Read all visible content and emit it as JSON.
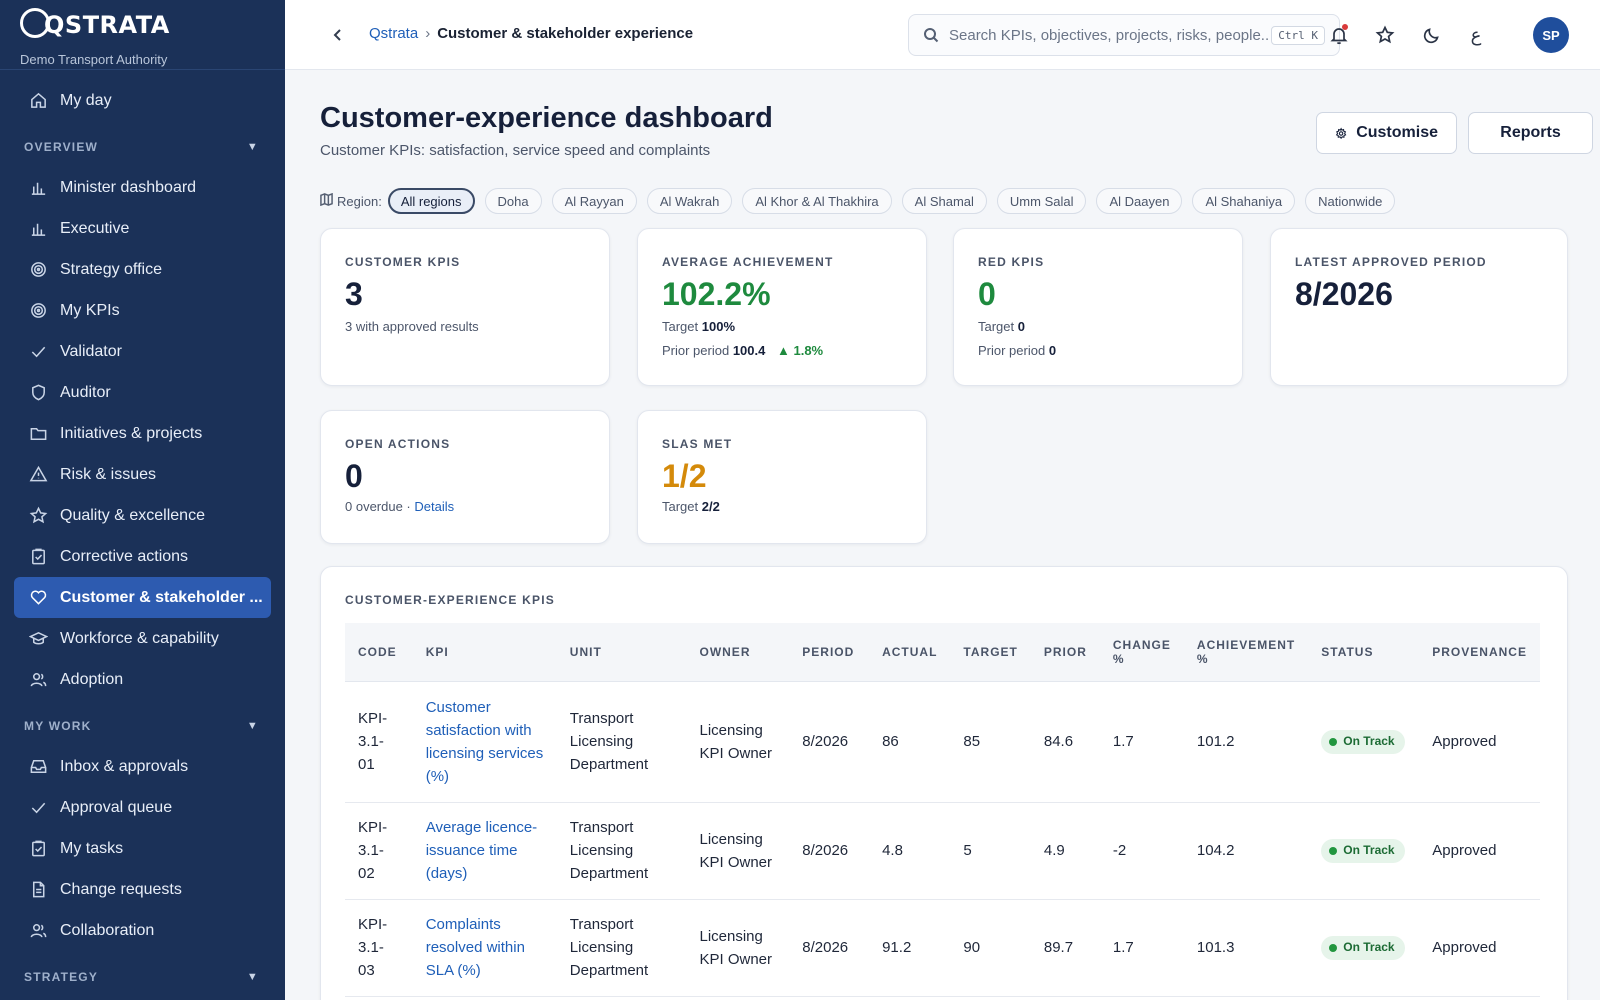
{
  "sidebar": {
    "logo_text": "QSTRATA",
    "org": "Demo Transport Authority",
    "items_top": [
      {
        "label": "My day",
        "icon": "home-icon"
      }
    ],
    "sections": [
      {
        "title": "OVERVIEW",
        "items": [
          {
            "label": "Minister dashboard",
            "icon": "bar-chart-icon"
          },
          {
            "label": "Executive",
            "icon": "bar-chart-icon"
          },
          {
            "label": "Strategy office",
            "icon": "target-icon"
          },
          {
            "label": "My KPIs",
            "icon": "target-icon"
          },
          {
            "label": "Validator",
            "icon": "check-icon"
          },
          {
            "label": "Auditor",
            "icon": "shield-icon"
          },
          {
            "label": "Initiatives & projects",
            "icon": "folder-icon"
          },
          {
            "label": "Risk & issues",
            "icon": "warning-icon"
          },
          {
            "label": "Quality & excellence",
            "icon": "star-icon"
          },
          {
            "label": "Corrective actions",
            "icon": "clipboard-check-icon"
          },
          {
            "label": "Customer & stakeholder ...",
            "icon": "heart-icon",
            "active": true
          },
          {
            "label": "Workforce & capability",
            "icon": "graduation-cap-icon"
          },
          {
            "label": "Adoption",
            "icon": "users-icon"
          }
        ]
      },
      {
        "title": "MY WORK",
        "items": [
          {
            "label": "Inbox & approvals",
            "icon": "inbox-icon"
          },
          {
            "label": "Approval queue",
            "icon": "check-icon"
          },
          {
            "label": "My tasks",
            "icon": "clipboard-check-icon"
          },
          {
            "label": "Change requests",
            "icon": "document-icon"
          },
          {
            "label": "Collaboration",
            "icon": "users-icon"
          }
        ]
      },
      {
        "title": "STRATEGY",
        "items": []
      }
    ]
  },
  "topbar": {
    "breadcrumb_root": "Qstrata",
    "breadcrumb_sep": "›",
    "breadcrumb_current": "Customer & stakeholder experience",
    "search_placeholder": "Search KPIs, objectives, projects, risks, people...",
    "search_shortcut": "Ctrl K",
    "language_toggle": "ع",
    "avatar_initials": "SP"
  },
  "page": {
    "title": "Customer-experience dashboard",
    "subtitle": "Customer KPIs: satisfaction, service speed and complaints",
    "customise_label": "Customise",
    "reports_label": "Reports"
  },
  "regions": {
    "label": "Region:",
    "options": [
      "All regions",
      "Doha",
      "Al Rayyan",
      "Al Wakrah",
      "Al Khor & Al Thakhira",
      "Al Shamal",
      "Umm Salal",
      "Al Daayen",
      "Al Shahaniya",
      "Nationwide"
    ],
    "selected": "All regions"
  },
  "cards": {
    "customer_kpis": {
      "label": "CUSTOMER KPIS",
      "value": "3",
      "note": "3 with approved results"
    },
    "avg_achievement": {
      "label": "AVERAGE ACHIEVEMENT",
      "value": "102.2%",
      "target_label": "Target",
      "target_value": "100%",
      "prior_label": "Prior period",
      "prior_value": "100.4",
      "change": "▲ 1.8%"
    },
    "red_kpis": {
      "label": "RED KPIS",
      "value": "0",
      "target_label": "Target",
      "target_value": "0",
      "prior_label": "Prior period",
      "prior_value": "0"
    },
    "latest_period": {
      "label": "LATEST APPROVED PERIOD",
      "value": "8/2026"
    },
    "open_actions": {
      "label": "OPEN ACTIONS",
      "value": "0",
      "note": "0 overdue ·",
      "details_link": "Details"
    },
    "slas_met": {
      "label": "SLAS MET",
      "value": "1/2",
      "target_label": "Target",
      "target_value": "2/2"
    }
  },
  "kpi_table": {
    "title": "CUSTOMER-EXPERIENCE KPIS",
    "headers": [
      "CODE",
      "KPI",
      "UNIT",
      "OWNER",
      "PERIOD",
      "ACTUAL",
      "TARGET",
      "PRIOR",
      "CHANGE %",
      "ACHIEVEMENT %",
      "STATUS",
      "PROVENANCE"
    ],
    "rows": [
      {
        "code": "KPI-3.1-01",
        "kpi": "Customer satisfaction with licensing services (%)",
        "unit": "Transport Licensing Department",
        "owner": "Licensing KPI Owner",
        "period": "8/2026",
        "actual": "86",
        "target": "85",
        "prior": "84.6",
        "change": "1.7",
        "achievement": "101.2",
        "status": "On Track",
        "provenance": "Approved"
      },
      {
        "code": "KPI-3.1-02",
        "kpi": "Average licence-issuance time (days)",
        "unit": "Transport Licensing Department",
        "owner": "Licensing KPI Owner",
        "period": "8/2026",
        "actual": "4.8",
        "target": "5",
        "prior": "4.9",
        "change": "-2",
        "achievement": "104.2",
        "status": "On Track",
        "provenance": "Approved"
      },
      {
        "code": "KPI-3.1-03",
        "kpi": "Complaints resolved within SLA (%)",
        "unit": "Transport Licensing Department",
        "owner": "Licensing KPI Owner",
        "period": "8/2026",
        "actual": "91.2",
        "target": "90",
        "prior": "89.7",
        "change": "1.7",
        "achievement": "101.3",
        "status": "On Track",
        "provenance": "Approved"
      }
    ]
  },
  "colors": {
    "sidebar_bg": "#1b3158",
    "active_nav": "#2d5bb0",
    "link": "#1f5fb8",
    "positive": "#1e8a3e",
    "warning": "#d48a0a",
    "status_on_track": "#22963f"
  }
}
